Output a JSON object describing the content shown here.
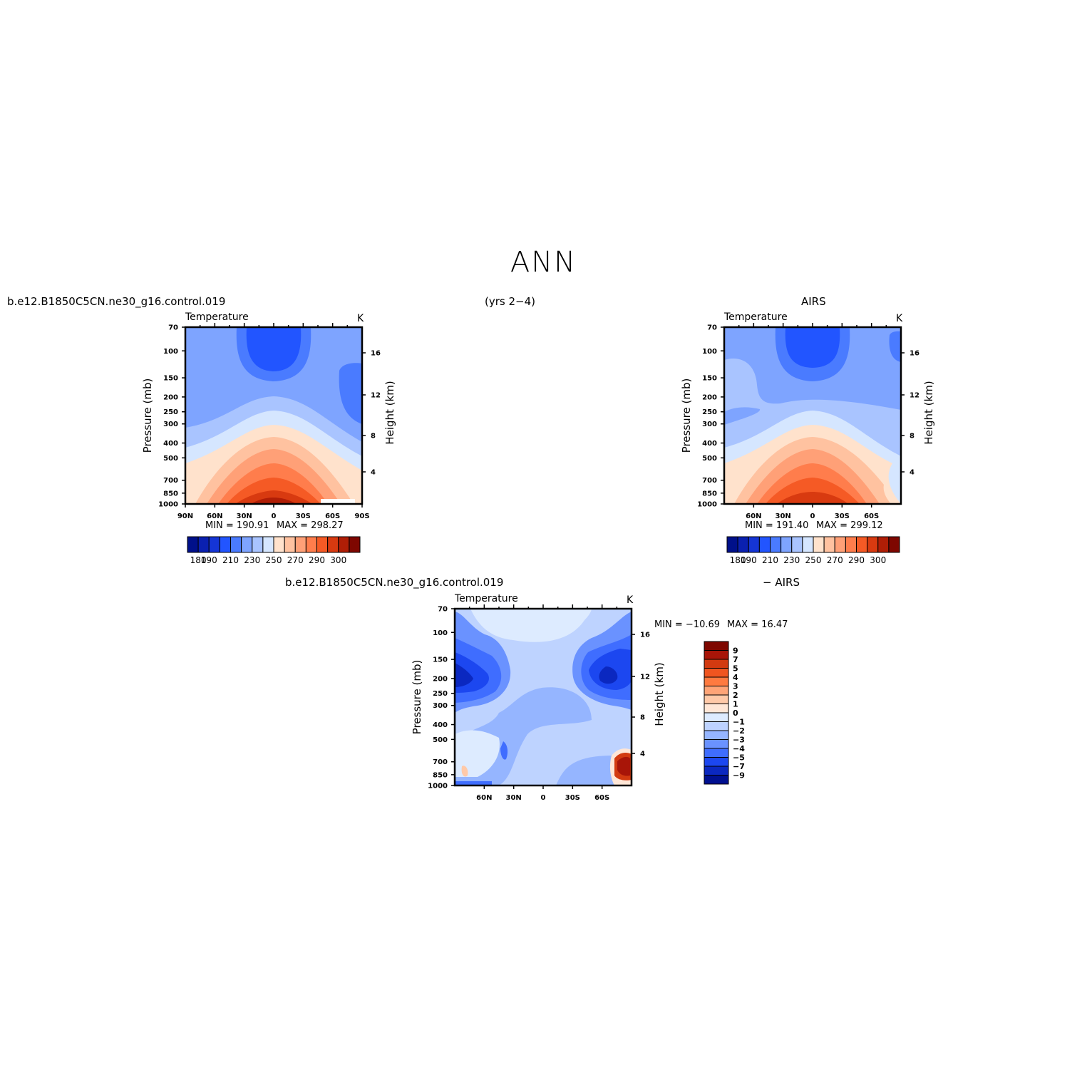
{
  "page": {
    "title": "ANN",
    "case_name": "b.e12.B1850C5CN.ne30_g16.control.019",
    "years": "(yrs 2−4)",
    "obs_name": "AIRS",
    "diff_suffix": "− AIRS"
  },
  "chart_data": [
    {
      "type": "heatmap",
      "variable": "Temperature",
      "units": "K",
      "ylabel": "Pressure (mb)",
      "y2label": "Height (km)",
      "y_ticks": [
        "70",
        "100",
        "150",
        "200",
        "250",
        "300",
        "400",
        "500",
        "700",
        "850",
        "1000"
      ],
      "y2_ticks": [
        "16",
        "12",
        "8",
        "4"
      ],
      "x_ticks": [
        "90N",
        "60N",
        "30N",
        "0",
        "30S",
        "60S",
        "90S"
      ],
      "min_label": "MIN =  190.91",
      "max_label": "MAX =  298.27",
      "min": 190.91,
      "max": 298.27,
      "colorbar_labels": [
        "180",
        "190",
        "210",
        "230",
        "250",
        "270",
        "290",
        "300"
      ]
    },
    {
      "type": "heatmap",
      "variable": "Temperature",
      "units": "K",
      "ylabel": "Pressure (mb)",
      "y2label": "Height (km)",
      "y_ticks": [
        "70",
        "100",
        "150",
        "200",
        "250",
        "300",
        "400",
        "500",
        "700",
        "850",
        "1000"
      ],
      "y2_ticks": [
        "16",
        "12",
        "8",
        "4"
      ],
      "x_ticks": [
        "60N",
        "30N",
        "0",
        "30S",
        "60S"
      ],
      "min_label": "MIN =  191.40",
      "max_label": "MAX =  299.12",
      "min": 191.4,
      "max": 299.12,
      "colorbar_labels": [
        "180",
        "190",
        "210",
        "230",
        "250",
        "270",
        "290",
        "300"
      ]
    },
    {
      "type": "heatmap",
      "variable": "Temperature",
      "units": "K",
      "ylabel": "Pressure (mb)",
      "y2label": "Height (km)",
      "y_ticks": [
        "70",
        "100",
        "150",
        "200",
        "250",
        "300",
        "400",
        "500",
        "700",
        "850",
        "1000"
      ],
      "y2_ticks": [
        "16",
        "12",
        "8",
        "4"
      ],
      "x_ticks": [
        "60N",
        "30N",
        "0",
        "30S",
        "60S"
      ],
      "min_label": "MIN = −10.69",
      "max_label": "MAX =   16.47",
      "min": -10.69,
      "max": 16.47,
      "colorbar_labels": [
        "9",
        "7",
        "5",
        "4",
        "3",
        "2",
        "1",
        "0",
        "−1",
        "−2",
        "−3",
        "−4",
        "−5",
        "−7",
        "−9"
      ]
    }
  ],
  "colors": {
    "temperature_scale": [
      "#00108a",
      "#0a20b0",
      "#1535d5",
      "#2255ff",
      "#4a7bff",
      "#7ea4ff",
      "#a9c4ff",
      "#d5e6ff",
      "#ffe2cc",
      "#ffc2a0",
      "#ffa077",
      "#ff7d4c",
      "#f55a25",
      "#d83a10",
      "#b01e06",
      "#7e0700"
    ],
    "difference_scale": [
      "#7e0700",
      "#a81508",
      "#d23a10",
      "#f05520",
      "#ff7a40",
      "#ffa477",
      "#ffc9a8",
      "#ffe6d6",
      "#ddebff",
      "#bed3ff",
      "#95b5ff",
      "#6a92ff",
      "#3f6dff",
      "#1c47f0",
      "#0b28c0",
      "#001090"
    ]
  }
}
